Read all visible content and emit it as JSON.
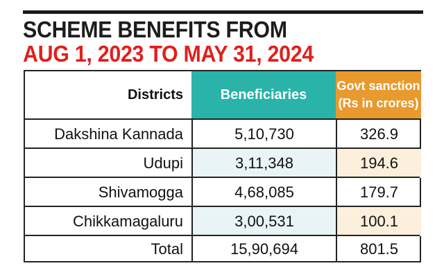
{
  "title": {
    "line1": "SCHEME BENEFITS FROM",
    "line2": "AUG 1, 2023 TO MAY 31, 2024"
  },
  "colors": {
    "title_red": "#e0201c",
    "beneficiaries_header": "#29b3a9",
    "sanction_header": "#e89a2f",
    "beneficiaries_shade": "#e9f4f6",
    "sanction_shade": "#fcefdc"
  },
  "chart_data": {
    "type": "table",
    "title": "SCHEME BENEFITS FROM AUG 1, 2023 TO MAY 31, 2024",
    "columns": [
      "Districts",
      "Beneficiaries",
      "Govt sanction (Rs in crores)"
    ],
    "header": {
      "districts": "Districts",
      "beneficiaries": "Beneficiaries",
      "sanction_line1": "Govt sanction",
      "sanction_line2": "(Rs in crores)"
    },
    "rows": [
      {
        "district": "Dakshina Kannada",
        "beneficiaries": "5,10,730",
        "sanction": "326.9"
      },
      {
        "district": "Udupi",
        "beneficiaries": "3,11,348",
        "sanction": "194.6"
      },
      {
        "district": "Shivamogga",
        "beneficiaries": "4,68,085",
        "sanction": "179.7"
      },
      {
        "district": "Chikkamagaluru",
        "beneficiaries": "3,00,531",
        "sanction": "100.1"
      },
      {
        "district": "Total",
        "beneficiaries": "15,90,694",
        "sanction": "801.5"
      }
    ]
  }
}
